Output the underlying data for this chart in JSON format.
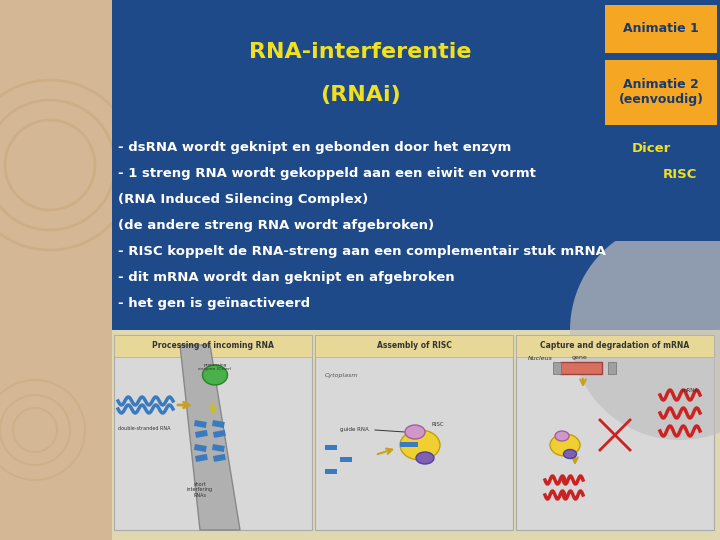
{
  "bg_color": "#d4b896",
  "slide_bg": "#1e4a8a",
  "title_text_line1": "RNA-interferentie",
  "title_text_line2": "(RNAi)",
  "title_color": "#f0e020",
  "btn1_color": "#f5a623",
  "btn1_text": "Animatie 1",
  "btn2_color": "#f5a623",
  "btn2_text": "Animatie 2\n(eenvoudig)",
  "btn_text_color": "#1a3a6b",
  "body_text_color": "#ffffff",
  "body_highlight_color": "#f0e020",
  "body_lines": [
    {
      "text": "- dsRNA wordt geknipt en gebonden door het enzym ",
      "highlight": "Dicer"
    },
    {
      "text": "- 1 streng RNA wordt gekoppeld aan een eiwit en vormt ",
      "highlight": "RISC"
    },
    {
      "text": "(RNA Induced Silencing Complex)",
      "highlight": null
    },
    {
      "text": "(de andere streng RNA wordt afgebroken)",
      "highlight": null
    },
    {
      "text": "- RISC koppelt de RNA-streng aan een complementair stuk mRNA",
      "highlight": null
    },
    {
      "text": "- dit mRNA wordt dan geknipt en afgebroken",
      "highlight": null
    },
    {
      "text": "- het gen is geïnactiveerd",
      "highlight": null
    }
  ],
  "panel_labels": [
    "Processing of incoming RNA",
    "Assembly of RISC",
    "Capture and degradation of mRNA"
  ],
  "panel_header_color": "#e8d898",
  "panel_bg_color": "#d8d8d8",
  "panel_border_color": "#aaaaaa",
  "circle_color": "#c9a87c",
  "body_fontsize": 9.5,
  "title_fontsize": 16,
  "btn_fontsize": 9
}
